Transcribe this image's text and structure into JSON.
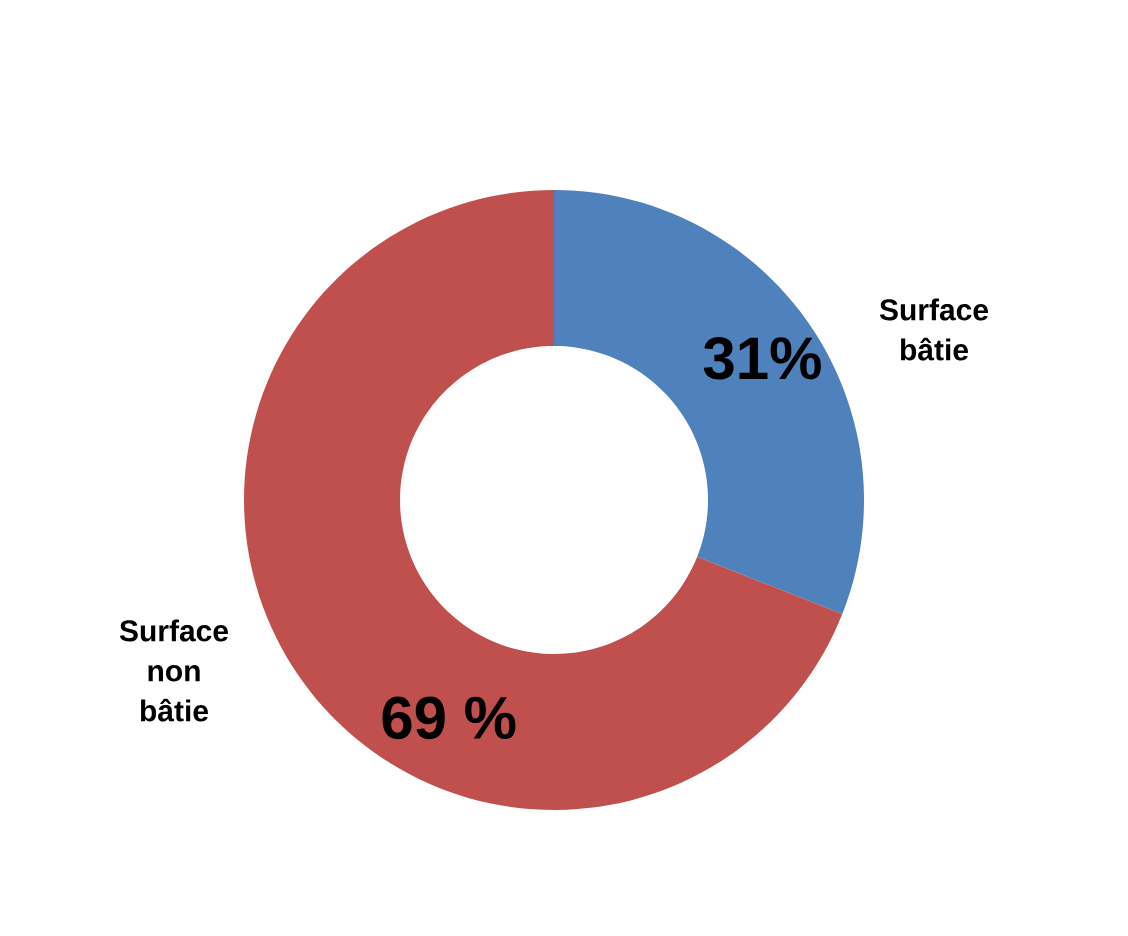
{
  "chart_data": {
    "type": "donut",
    "categories": [
      "Surface bâtie",
      "Surface non bâtie"
    ],
    "values": [
      31,
      69
    ],
    "colors": [
      "#4f81bd",
      "#c0504d"
    ],
    "value_labels": [
      "31%",
      "69 %"
    ]
  }
}
